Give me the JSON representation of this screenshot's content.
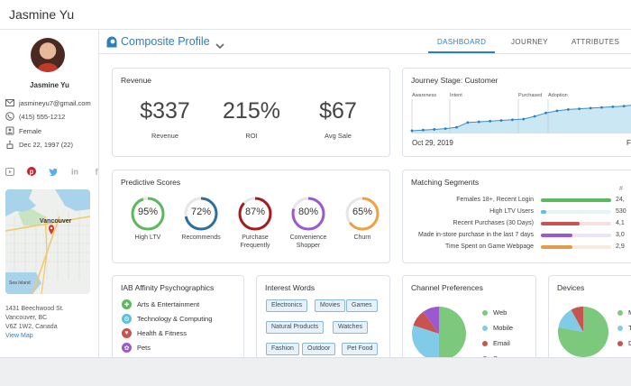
{
  "header": {
    "name": "Jasmine Yu"
  },
  "sidebar": {
    "name": "Jasmine Yu",
    "email": "jasmineyu7@gmail.com",
    "phone": "(415) 555-1212",
    "gender": "Female",
    "birthday": "Dec 22, 1997 (22)",
    "social_icons": [
      "youtube-icon",
      "pinterest-icon",
      "twitter-icon",
      "linkedin-icon",
      "facebook-icon"
    ],
    "map": {
      "city_label": "Vancouver",
      "area_label": "Sea Island"
    },
    "address": {
      "line1": "1431 Beechwood St.",
      "line2": "Vancouver, BC",
      "line3": "V6Z 1W2, Canada",
      "link": "View Map"
    }
  },
  "profile": {
    "title": "Composite Profile",
    "tabs": [
      {
        "label": "DASHBOARD",
        "active": true
      },
      {
        "label": "JOURNEY",
        "active": false
      },
      {
        "label": "ATTRIBUTES",
        "active": false
      }
    ]
  },
  "revenue": {
    "title": "Revenue",
    "metrics": [
      {
        "value": "$337",
        "label": "Revenue"
      },
      {
        "value": "215%",
        "label": "ROI"
      },
      {
        "value": "$67",
        "label": "Avg Sale"
      }
    ]
  },
  "journey": {
    "title": "Journey Stage: Customer",
    "stages": [
      "Awareness",
      "Intent",
      "Purchased",
      "Adoption"
    ],
    "date_start": "Oct 29, 2019",
    "date_end_partial": "F",
    "trend": [
      0.08,
      0.1,
      0.12,
      0.14,
      0.18,
      0.32,
      0.34,
      0.36,
      0.38,
      0.4,
      0.42,
      0.5,
      0.6,
      0.66,
      0.7,
      0.72,
      0.74,
      0.76,
      0.78,
      0.8,
      0.84,
      0.9
    ]
  },
  "predictive": {
    "title": "Predictive Scores",
    "scores": [
      {
        "pct": "95%",
        "value": 95,
        "label": "High LTV",
        "color": "#5cb85c"
      },
      {
        "pct": "72%",
        "value": 72,
        "label": "Recommends",
        "color": "#2f6f9f"
      },
      {
        "pct": "87%",
        "value": 87,
        "label": "Purchase Frequently",
        "color": "#a61c1c"
      },
      {
        "pct": "80%",
        "value": 80,
        "label": "Convenience Shopper",
        "color": "#9b59d0"
      },
      {
        "pct": "65%",
        "value": 65,
        "label": "Churn",
        "color": "#f0a03c"
      }
    ]
  },
  "segments": {
    "title": "Matching Segments",
    "col_header": "#",
    "rows": [
      {
        "label": "Females 18+, Recent Login",
        "value": "24,",
        "fill": 1.0,
        "color": "#5cb85c",
        "track": "#e6f3e6"
      },
      {
        "label": "High LTV Users",
        "value": "530",
        "fill": 0.08,
        "color": "#5bc0de",
        "track": "#e3f3f8"
      },
      {
        "label": "Recent Purchases (30 Days)",
        "value": "4,1",
        "fill": 0.55,
        "color": "#c9534f",
        "track": "#f6e1e0"
      },
      {
        "label": "Made in-store purchase in the last 7 days",
        "value": "3,0",
        "fill": 0.45,
        "color": "#9b59d0",
        "track": "#efe3f7"
      },
      {
        "label": "Time Spent on Game Webpage",
        "value": "2,9",
        "fill": 0.45,
        "color": "#e39b4f",
        "track": "#f7ebde"
      }
    ]
  },
  "iab": {
    "title": "IAB Affinity Psychographics",
    "items": [
      {
        "label": "Arts & Entertainment",
        "color": "#5cb85c",
        "glyph": "✚"
      },
      {
        "label": "Technology & Computing",
        "color": "#5bc0de",
        "glyph": "⚙"
      },
      {
        "label": "Health & Fitness",
        "color": "#c9534f",
        "glyph": "♥"
      },
      {
        "label": "Pets",
        "color": "#9b59d0",
        "glyph": "✿"
      }
    ]
  },
  "interest": {
    "title": "Interest Words",
    "words": [
      "Electronics",
      "Movies",
      "Games",
      "Natural Products",
      "Watches",
      "Fashion",
      "Outdoor",
      "Pet Food"
    ]
  },
  "channel": {
    "title": "Channel Preferences",
    "legend": [
      {
        "label": "Web",
        "color": "#7cc87c"
      },
      {
        "label": "Mobile",
        "color": "#80cbe8"
      },
      {
        "label": "Email",
        "color": "#c9534f"
      },
      {
        "label": "Sms",
        "color": "#9b59d0"
      }
    ],
    "slices": [
      0.5,
      0.3,
      0.1,
      0.1
    ]
  },
  "devices": {
    "title": "Devices",
    "legend": [
      {
        "label": "Mo",
        "color": "#7cc87c"
      },
      {
        "label": "Tab",
        "color": "#80cbe8"
      },
      {
        "label": "De",
        "color": "#c9534f"
      }
    ],
    "slices": [
      0.78,
      0.14,
      0.08
    ]
  }
}
